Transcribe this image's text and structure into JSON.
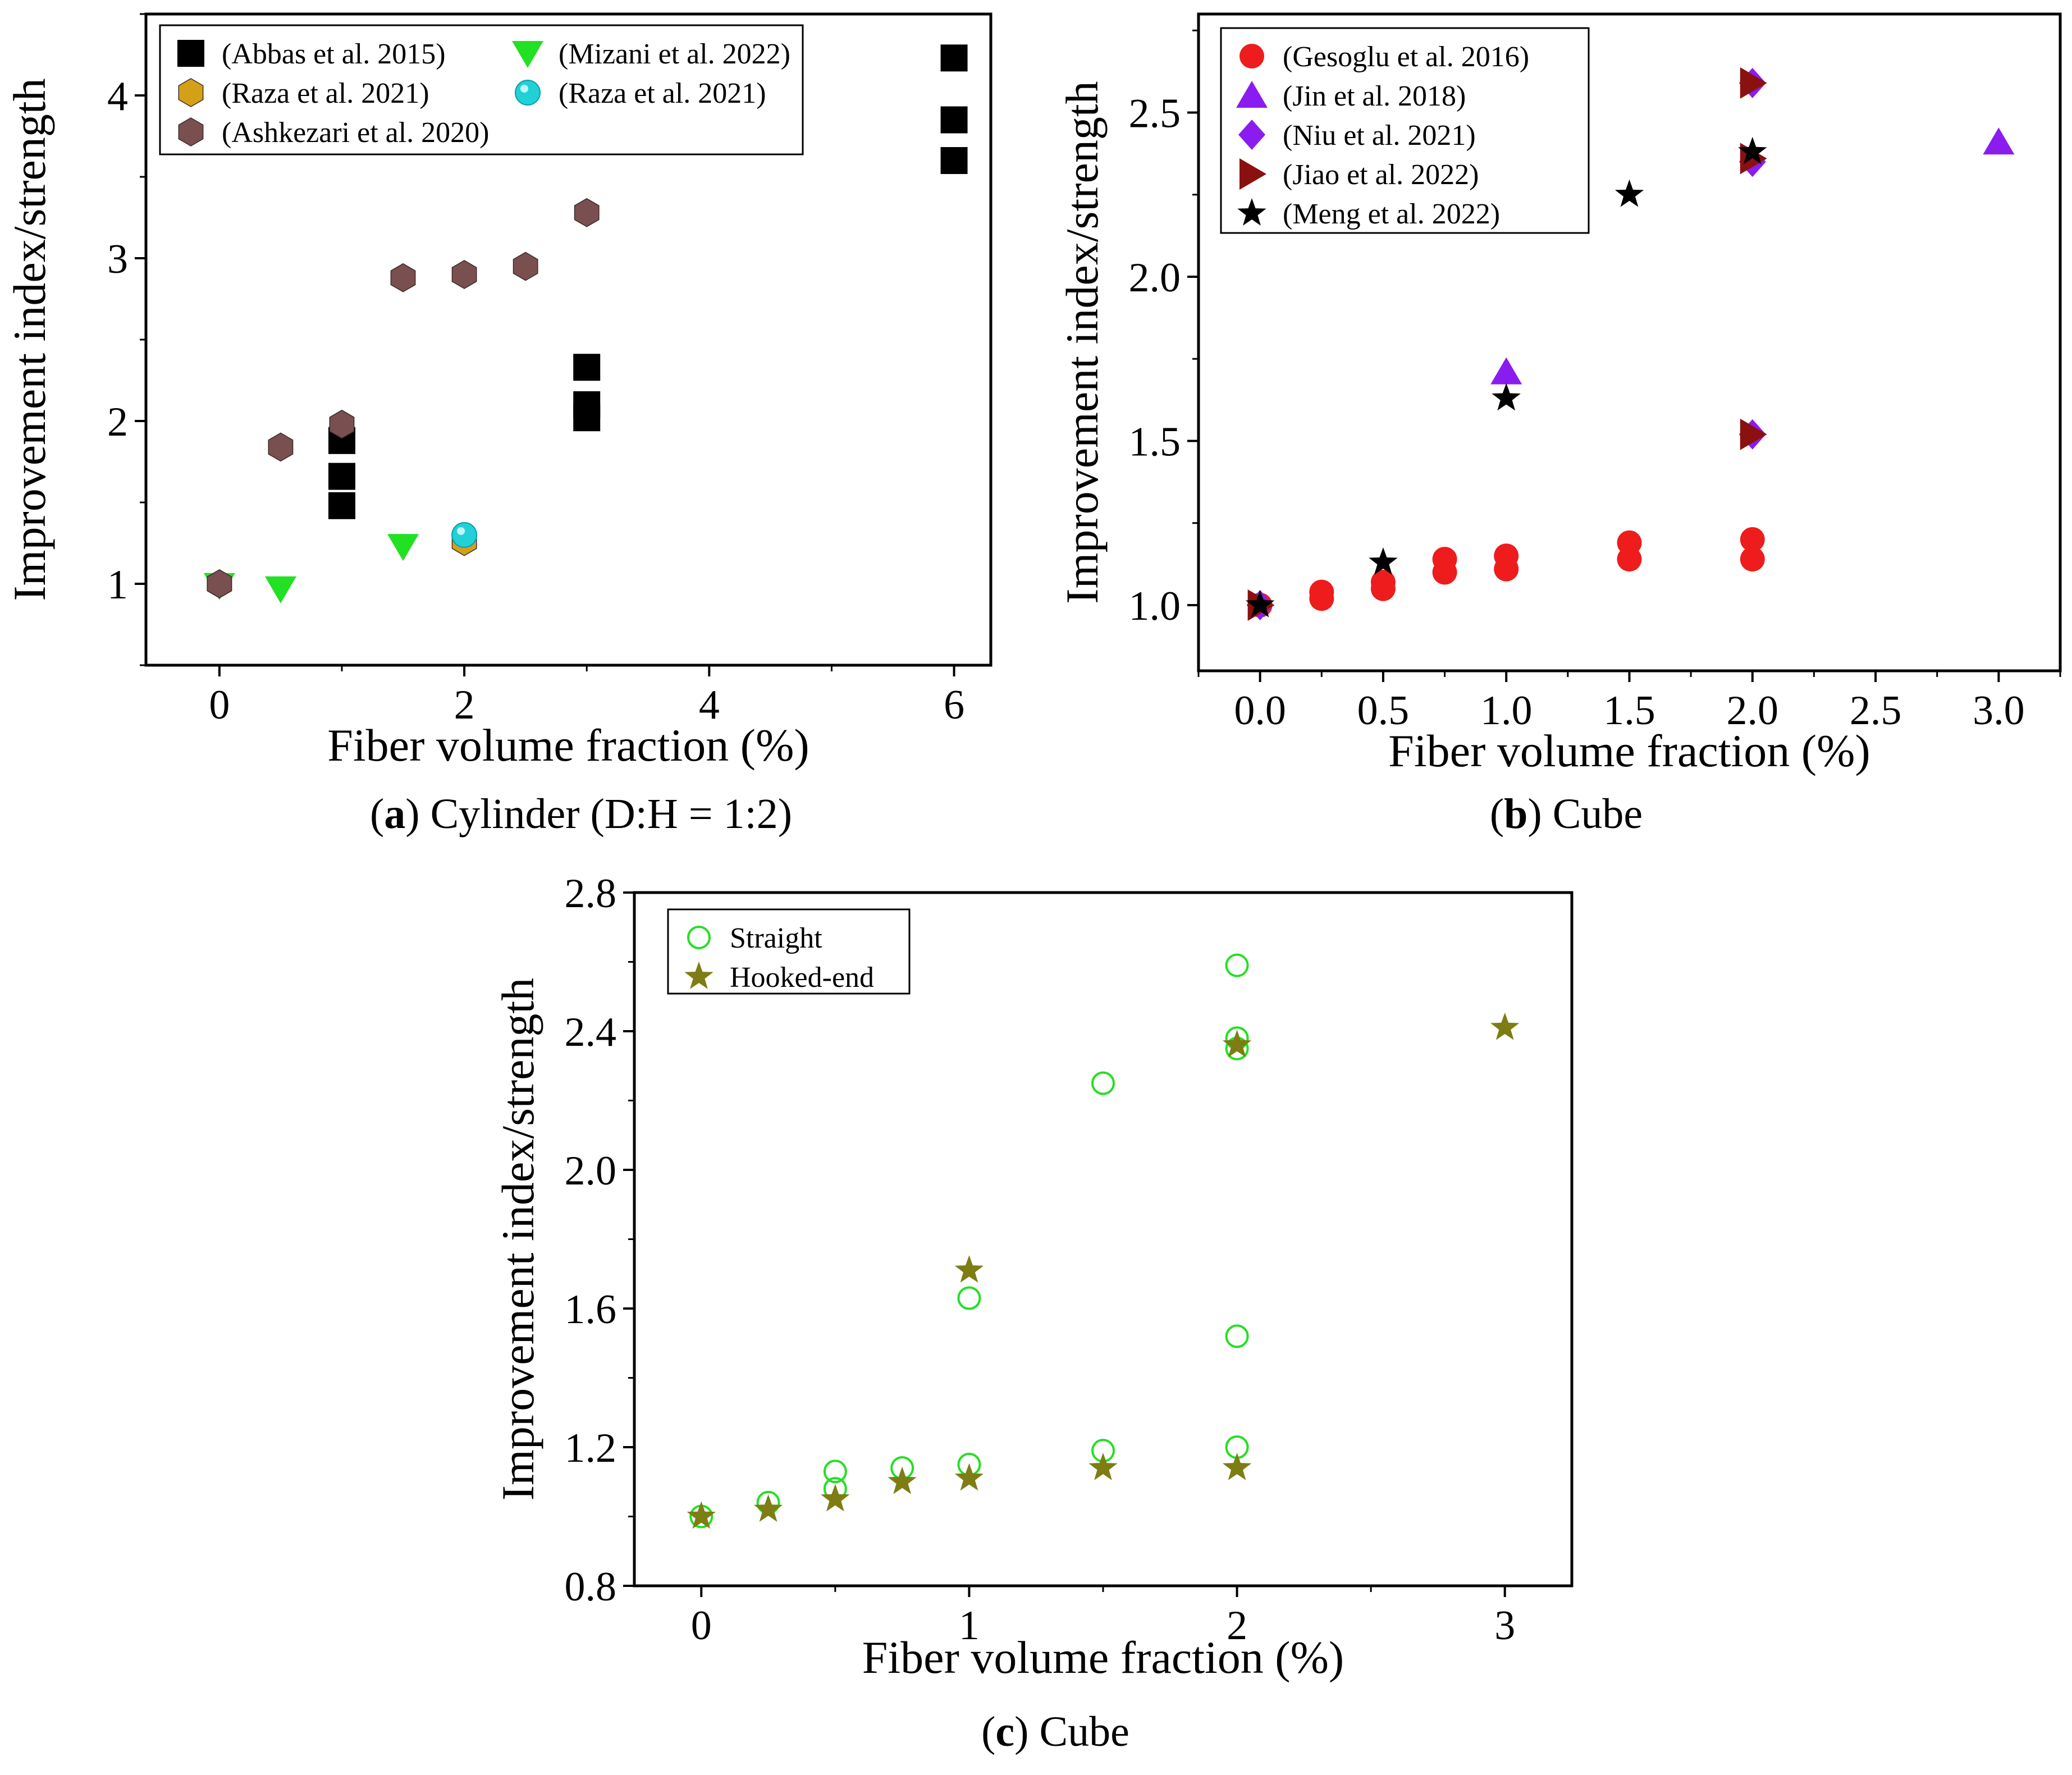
{
  "chart_data": [
    {
      "id": "a",
      "type": "scatter",
      "caption": {
        "letter": "a",
        "text": " Cylinder (D:H = 1:2)"
      },
      "xlabel": "Fiber volume fraction (%)",
      "ylabel": "Improvement index/strength",
      "xlim": [
        -0.6,
        6.3
      ],
      "ylim": [
        0.5,
        4.5
      ],
      "xticks": [
        0,
        2,
        4,
        6
      ],
      "yticks": [
        1,
        2,
        3,
        4
      ],
      "xtick_labels": [
        "0",
        "2",
        "4",
        "6"
      ],
      "ytick_labels": [
        "1",
        "2",
        "3",
        "4"
      ],
      "series": [
        {
          "name": "(Abbas et al. 2015)",
          "marker": "square",
          "color": "#000000",
          "points": [
            [
              1,
              1.48
            ],
            [
              1,
              1.66
            ],
            [
              1,
              1.88
            ],
            [
              3,
              2.02
            ],
            [
              3,
              2.1
            ],
            [
              3,
              2.33
            ],
            [
              6,
              3.6
            ],
            [
              6,
              3.85
            ],
            [
              6,
              4.23
            ]
          ]
        },
        {
          "name": "(Mizani et al. 2022)",
          "marker": "triangle-down",
          "color": "#22e022",
          "points": [
            [
              0,
              0.99
            ],
            [
              0.5,
              0.97
            ],
            [
              1.5,
              1.23
            ]
          ]
        },
        {
          "name": "(Raza et al. 2021)",
          "marker": "hexagon",
          "color": "#d4a017",
          "points": [
            [
              0,
              1.0
            ],
            [
              2,
              1.26
            ]
          ]
        },
        {
          "name": "(Raza et al. 2021)",
          "marker": "sphere",
          "color": "#22d0d8",
          "points": [
            [
              2,
              1.3
            ]
          ]
        },
        {
          "name": "(Ashkezari et al. 2020)",
          "marker": "hexagon",
          "color": "#7a4f4f",
          "points": [
            [
              0,
              1.0
            ],
            [
              0.5,
              1.84
            ],
            [
              1,
              1.98
            ],
            [
              1.5,
              2.88
            ],
            [
              2,
              2.9
            ],
            [
              2.5,
              2.95
            ],
            [
              3,
              3.28
            ]
          ]
        }
      ],
      "legend": {
        "placement": "top-left",
        "columns": 2,
        "order": [
          [
            0,
            1
          ],
          [
            2,
            3
          ],
          [
            4
          ]
        ]
      }
    },
    {
      "id": "b",
      "type": "scatter",
      "caption": {
        "letter": "b",
        "text": " Cube"
      },
      "xlabel": "Fiber volume fraction (%)",
      "ylabel": "Improvement index/strength",
      "xlim": [
        -0.25,
        3.25
      ],
      "ylim": [
        0.8,
        2.8
      ],
      "xticks": [
        0,
        0.5,
        1,
        1.5,
        2,
        2.5,
        3
      ],
      "yticks": [
        1.0,
        1.5,
        2.0,
        2.5
      ],
      "xtick_labels": [
        "0.0",
        "0.5",
        "1.0",
        "1.5",
        "2.0",
        "2.5",
        "3.0"
      ],
      "ytick_labels": [
        "1.0",
        "1.5",
        "2.0",
        "2.5"
      ],
      "series": [
        {
          "name": "(Gesoglu et al. 2016)",
          "marker": "circle",
          "color": "#ee1c1c",
          "points": [
            [
              0,
              1.0
            ],
            [
              0.25,
              1.02
            ],
            [
              0.25,
              1.04
            ],
            [
              0.5,
              1.05
            ],
            [
              0.5,
              1.07
            ],
            [
              0.75,
              1.1
            ],
            [
              0.75,
              1.14
            ],
            [
              1,
              1.11
            ],
            [
              1,
              1.15
            ],
            [
              1.5,
              1.14
            ],
            [
              1.5,
              1.19
            ],
            [
              2,
              1.14
            ],
            [
              2,
              1.2
            ]
          ]
        },
        {
          "name": "(Jin et al. 2018)",
          "marker": "triangle-up",
          "color": "#8b1cf0",
          "points": [
            [
              1,
              1.71
            ],
            [
              3,
              2.41
            ]
          ]
        },
        {
          "name": "(Niu et al. 2021)",
          "marker": "diamond",
          "color": "#8b1cf0",
          "points": [
            [
              0,
              1.0
            ],
            [
              2,
              1.52
            ],
            [
              2,
              2.35
            ],
            [
              2,
              2.59
            ]
          ]
        },
        {
          "name": "(Jiao et al. 2022)",
          "marker": "triangle-right",
          "color": "#8b1010",
          "points": [
            [
              0,
              1.0
            ],
            [
              2,
              1.52
            ],
            [
              2,
              2.36
            ],
            [
              2,
              2.59
            ]
          ]
        },
        {
          "name": "(Meng et al. 2022)",
          "marker": "star",
          "color": "#000000",
          "points": [
            [
              0,
              1.0
            ],
            [
              0.5,
              1.13
            ],
            [
              1,
              1.63
            ],
            [
              1.5,
              2.25
            ],
            [
              2,
              2.38
            ]
          ]
        }
      ],
      "legend": {
        "placement": "top-left",
        "columns": 1
      }
    },
    {
      "id": "c",
      "type": "scatter",
      "caption": {
        "letter": "c",
        "text": " Cube"
      },
      "xlabel": "Fiber volume fraction (%)",
      "ylabel": "Improvement index/strength",
      "xlim": [
        -0.25,
        3.25
      ],
      "ylim": [
        0.8,
        2.8
      ],
      "xticks": [
        0,
        1,
        2,
        3
      ],
      "yticks": [
        0.8,
        1.2,
        1.6,
        2.0,
        2.4,
        2.8
      ],
      "xtick_labels": [
        "0",
        "1",
        "2",
        "3"
      ],
      "ytick_labels": [
        "0.8",
        "1.2",
        "1.6",
        "2.0",
        "2.4",
        "2.8"
      ],
      "series": [
        {
          "name": "Straight",
          "marker": "open-circle",
          "color": "#22e022",
          "points": [
            [
              0,
              1.0
            ],
            [
              0.25,
              1.04
            ],
            [
              0.5,
              1.08
            ],
            [
              0.5,
              1.13
            ],
            [
              0.75,
              1.14
            ],
            [
              1,
              1.15
            ],
            [
              1,
              1.63
            ],
            [
              1.5,
              1.19
            ],
            [
              1.5,
              2.25
            ],
            [
              2,
              1.2
            ],
            [
              2,
              1.52
            ],
            [
              2,
              2.35
            ],
            [
              2,
              2.38
            ],
            [
              2,
              2.59
            ]
          ]
        },
        {
          "name": "Hooked-end",
          "marker": "star",
          "color": "#7d7d14",
          "points": [
            [
              0,
              1.0
            ],
            [
              0.25,
              1.02
            ],
            [
              0.5,
              1.05
            ],
            [
              0.75,
              1.1
            ],
            [
              1,
              1.11
            ],
            [
              1,
              1.71
            ],
            [
              1.5,
              1.14
            ],
            [
              2,
              1.14
            ],
            [
              2,
              2.36
            ],
            [
              3,
              2.41
            ]
          ]
        }
      ],
      "legend": {
        "placement": "top-left",
        "columns": 1
      }
    }
  ]
}
